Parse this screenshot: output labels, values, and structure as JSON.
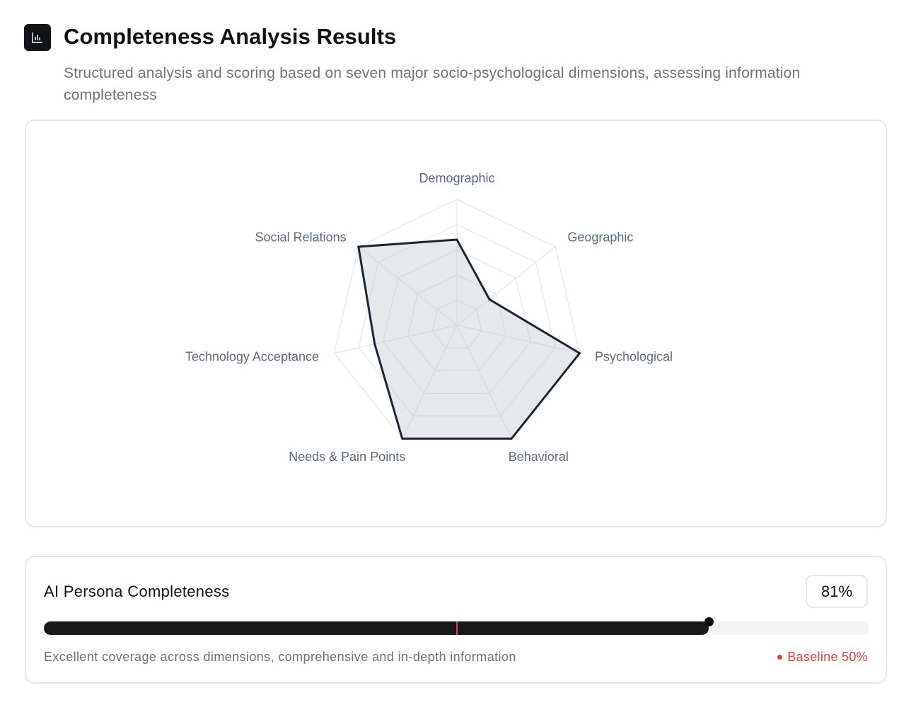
{
  "header": {
    "icon": "bar-chart-icon",
    "title": "Completeness Analysis Results",
    "subtitle": "Structured analysis and scoring based on seven major socio-psychological dimensions, assessing information completeness"
  },
  "chart_data": {
    "type": "radar",
    "categories": [
      "Demographic",
      "Geographic",
      "Psychological",
      "Behavioral",
      "Needs & Pain Points",
      "Technology Acceptance",
      "Social Relations"
    ],
    "values": [
      0.68,
      0.33,
      1.0,
      1.0,
      1.0,
      0.67,
      1.0
    ],
    "range": [
      0,
      1
    ],
    "rings": 5,
    "grid": true
  },
  "completeness": {
    "title": "AI Persona Completeness",
    "percent_label": "81%",
    "value": 0.81,
    "baseline": 0.5,
    "description": "Excellent coverage across dimensions, comprehensive and in-depth information",
    "baseline_label": "Baseline 50%",
    "colors": {
      "fill": "#17181b",
      "baseline": "#ef3b3b",
      "track": "#f3f3f4"
    }
  }
}
